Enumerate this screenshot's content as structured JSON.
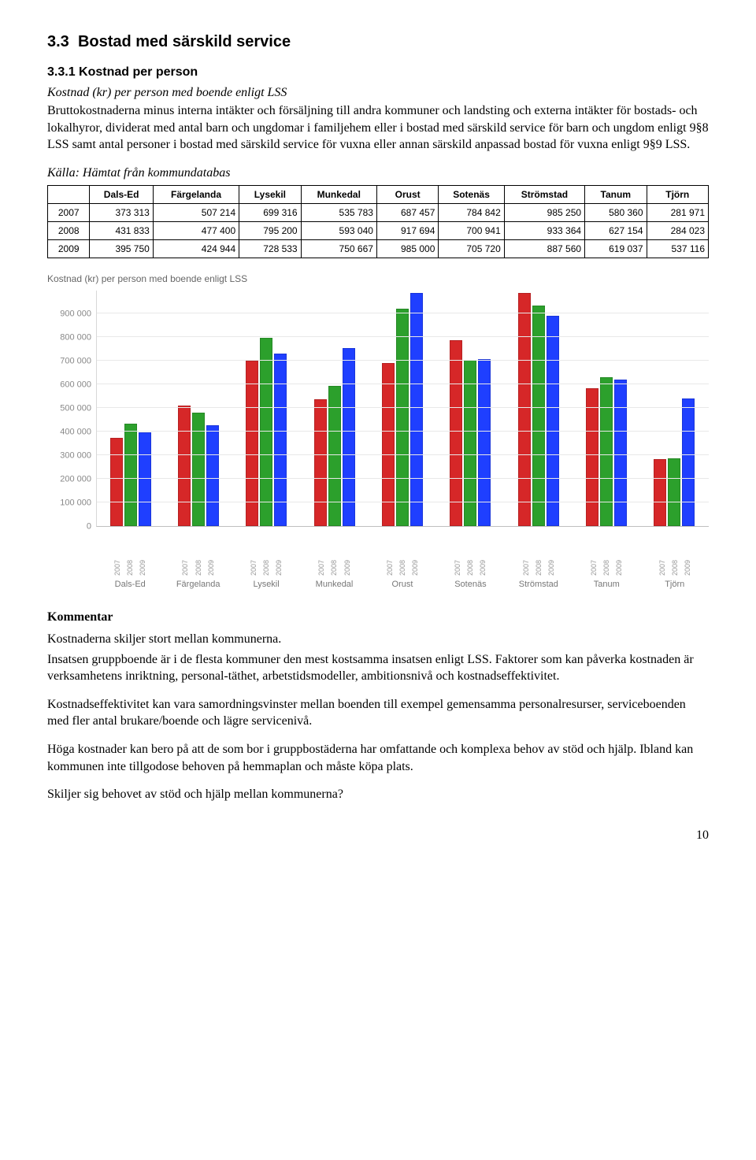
{
  "section_number": "3.3",
  "section_title": "Bostad med särskild service",
  "subsection_number": "3.3.1",
  "subsection_title": "Kostnad per person",
  "intro_italic": "Kostnad (kr) per person med boende enligt LSS",
  "intro_body": "Bruttokostnaderna minus interna intäkter och försäljning till andra kommuner och landsting och externa intäkter för bostads- och lokalhyror, dividerat med antal barn och ungdomar i familjehem eller i bostad med särskild service för barn och ungdom enligt 9§8 LSS samt antal personer i bostad med särskild service för vuxna eller annan särskild anpassad bostad för vuxna enligt 9§9 LSS.",
  "source_label": "Källa: Hämtat från kommundatabas",
  "columns": [
    "Dals-Ed",
    "Färgelanda",
    "Lysekil",
    "Munkedal",
    "Orust",
    "Sotenäs",
    "Strömstad",
    "Tanum",
    "Tjörn"
  ],
  "years": [
    "2007",
    "2008",
    "2009"
  ],
  "rows": [
    {
      "year": "2007",
      "vals": [
        "373 313",
        "507 214",
        "699 316",
        "535 783",
        "687 457",
        "784 842",
        "985 250",
        "580 360",
        "281 971"
      ]
    },
    {
      "year": "2008",
      "vals": [
        "431 833",
        "477 400",
        "795 200",
        "593 040",
        "917 694",
        "700 941",
        "933 364",
        "627 154",
        "284 023"
      ]
    },
    {
      "year": "2009",
      "vals": [
        "395 750",
        "424 944",
        "728 533",
        "750 667",
        "985 000",
        "705 720",
        "887 560",
        "619 037",
        "537 116"
      ]
    }
  ],
  "chart": {
    "title": "Kostnad (kr) per person med boende enligt LSS",
    "ylim": [
      0,
      1000000
    ],
    "ytick_step": 100000,
    "yticks": [
      "0",
      "100 000",
      "200 000",
      "300 000",
      "400 000",
      "500 000",
      "600 000",
      "700 000",
      "800 000",
      "900 000"
    ],
    "bar_colors": [
      "#d62728",
      "#2ca02c",
      "#1f3fff"
    ],
    "groups": [
      "Dals-Ed",
      "Färgelanda",
      "Lysekil",
      "Munkedal",
      "Orust",
      "Sotenäs",
      "Strömstad",
      "Tanum",
      "Tjörn"
    ],
    "values": [
      [
        373313,
        431833,
        395750
      ],
      [
        507214,
        477400,
        424944
      ],
      [
        699316,
        795200,
        728533
      ],
      [
        535783,
        593040,
        750667
      ],
      [
        687457,
        917694,
        985000
      ],
      [
        784842,
        700941,
        705720
      ],
      [
        985250,
        933364,
        887560
      ],
      [
        580360,
        627154,
        619037
      ],
      [
        281971,
        284023,
        537116
      ]
    ],
    "x_years": [
      "2007",
      "2008",
      "2009"
    ],
    "grid_color": "#e8e8e8",
    "background_color": "#ffffff"
  },
  "kommentar_heading": "Kommentar",
  "kommentar_p1": "Kostnaderna skiljer stort mellan kommunerna.",
  "kommentar_p2": "Insatsen gruppboende är i de flesta kommuner den mest kostsamma insatsen enligt LSS. Faktorer som kan påverka kostnaden är verksamhetens inriktning, personal-täthet, arbetstidsmodeller, ambitionsnivå och kostnadseffektivitet.",
  "kommentar_p3": "Kostnadseffektivitet kan vara samordningsvinster mellan boenden till exempel gemensamma personalresurser, serviceboenden med fler antal brukare/boende och lägre servicenivå.",
  "kommentar_p4": "Höga kostnader kan bero på att de som bor i gruppbostäderna har omfattande och komplexa behov av stöd och hjälp. Ibland kan kommunen inte tillgodose behoven på hemmaplan och måste köpa plats.",
  "kommentar_p5": "Skiljer sig behovet av stöd och hjälp mellan kommunerna?",
  "page_number": "10"
}
